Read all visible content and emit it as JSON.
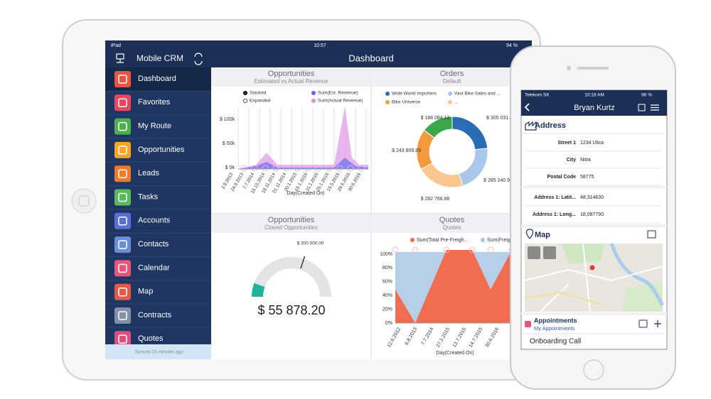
{
  "ipad": {
    "status": {
      "device": "iPad",
      "time": "10:57",
      "battery": "94 %"
    },
    "app_title": "Mobile CRM",
    "page_title": "Dashboard",
    "menu": [
      "Dashboard",
      "Favorites",
      "My Route",
      "Opportunities",
      "Leads",
      "Tasks",
      "Accounts",
      "Contacts",
      "Calendar",
      "Map",
      "Contracts",
      "Quotes"
    ],
    "sync_status": "Synced 23 minutes ago",
    "panels": [
      {
        "title": "Opportunities",
        "subtitle": "Estimated vs Actual Revenue",
        "legend": [
          "Stacked",
          "Sum(Est. Revenue)",
          "Expanded",
          "Sum(Actual Revenue)"
        ],
        "y_labels": [
          "$ 100k",
          "$ 50k",
          "$ 0k"
        ],
        "x_labels": [
          "2.8.2013",
          "24.9.2013",
          "7.7.2014",
          "15.10.2014",
          "18.11.2014",
          "21.11.2014",
          "20.1.2015",
          "15.1.2016",
          "11.1.2016",
          "25.1.2016",
          "15.5.2016",
          "29.6.2016",
          "30.6.2016"
        ],
        "x_title": "Day(Created On)"
      },
      {
        "title": "Orders",
        "subtitle": "Default",
        "legend": [
          "Wide World Importers",
          "Vast Bike Sales and ...",
          "Bike Universe",
          "..."
        ],
        "chart_data": {
          "type": "pie",
          "values": [
            305031.66,
            285240.95,
            282766.86,
            243809.83,
            188084.13
          ],
          "value_labels": [
            "$ 305 031.66",
            "$ 285 240.95",
            "$ 282 766.86",
            "$ 243 809.83",
            "$ 188 084.13"
          ],
          "colors": [
            "#2a6db3",
            "#a8c7ea",
            "#fbc58e",
            "#f39a3c",
            "#3aa84a"
          ]
        }
      },
      {
        "title": "Opportunities",
        "subtitle": "Closed Opportunities",
        "chart_data": {
          "type": "gauge",
          "values": [
            55878.2
          ],
          "value_labels": [
            "$ 55 878.20"
          ],
          "ylim": [
            0,
            500000
          ],
          "yticks": [
            {
              "value": 300000,
              "label": "$ 300 000.00"
            }
          ],
          "color": "#1fb39b"
        }
      },
      {
        "title": "Quotes",
        "subtitle": "Quotes",
        "legend": [
          "Sum(Total Pre-Freigh...",
          "Sum(Freigh"
        ],
        "y_labels": [
          "100%",
          "80%",
          "60%",
          "40%",
          "20%",
          "0%"
        ],
        "x_labels": [
          "12.6.2012",
          "6.8.2013",
          "7.7.2014",
          "27.3.2015",
          "13.7.2015",
          "14.7.2015",
          "30.6.2016"
        ],
        "x_title": "Day(Created On)"
      }
    ]
  },
  "iphone": {
    "status": {
      "carrier": "Telekom SK",
      "time": "10:18 AM",
      "battery": "96 %"
    },
    "title": "Bryan Kurtz",
    "address_section": "Address",
    "fields": [
      {
        "label": "Street 1",
        "value": "1234 Ulica"
      },
      {
        "label": "City",
        "value": "Nitra"
      },
      {
        "label": "Postal Code",
        "value": "58775"
      },
      {
        "label": "Address 1: Latit...",
        "value": "48,314630"
      },
      {
        "label": "Address 1: Long...",
        "value": "18,087790"
      }
    ],
    "map_section": "Map",
    "appointments": {
      "title": "Appointments",
      "view": "My Appointments",
      "items": [
        "Onboarding Call"
      ]
    }
  }
}
